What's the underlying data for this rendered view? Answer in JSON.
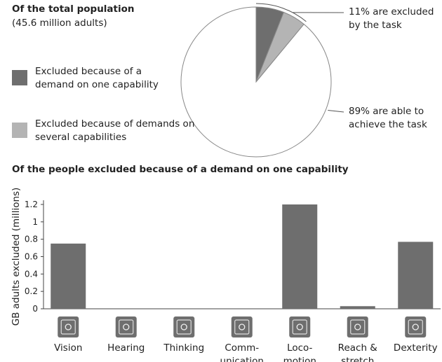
{
  "chart_data": [
    {
      "type": "pie",
      "title": "Of the total population",
      "subtitle": "(45.6 million adults)",
      "labels": [
        "Excluded because of a demand on one capability",
        "Excluded because of demands on several capabilities",
        null
      ],
      "values": [
        6,
        5,
        89
      ],
      "colors": [
        "#6e6e6e",
        "#b4b4b4",
        "#ffffff"
      ],
      "annotations": [
        "11% are excluded\nby the task",
        "89% are able to\nachieve the task"
      ]
    },
    {
      "type": "bar",
      "title": "Of the people excluded because of a demand on one capability",
      "ylabel": "GB adults excluded (millions)",
      "categories": [
        "Vision",
        "Hearing",
        "Thinking",
        "Comm-\nunication",
        "Loco-\nmotion",
        "Reach &\nstretch",
        "Dexterity"
      ],
      "values": [
        0.75,
        0,
        0,
        0,
        1.2,
        0.03,
        0.77
      ],
      "color": "#6e6e6e",
      "ylim": [
        0,
        1.2
      ],
      "yticks": [
        0,
        0.2,
        0.4,
        0.6,
        0.8,
        1,
        1.2
      ]
    }
  ]
}
